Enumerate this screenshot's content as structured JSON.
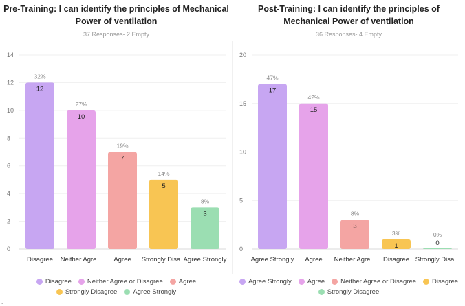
{
  "chart_data": [
    {
      "type": "bar",
      "title": "Pre-Training:  I can identify the principles of Mechanical Power of ventilation",
      "subtitle": "37 Responses- 2 Empty",
      "categories": [
        "Disagree",
        "Neither Agre...",
        "Agree",
        "Strongly Disa...",
        "Agree Strongly"
      ],
      "values": [
        12,
        10,
        7,
        5,
        3
      ],
      "percent_labels": [
        "32%",
        "27%",
        "19%",
        "14%",
        "8%"
      ],
      "colors": [
        "#c7a6f2",
        "#e6a3ea",
        "#f4a5a3",
        "#f8c553",
        "#9bdeb2"
      ],
      "ylim": [
        0,
        14
      ],
      "yticks": [
        "0",
        "2",
        "4",
        "6",
        "8",
        "10",
        "12",
        "14"
      ],
      "legend": [
        {
          "label": "Disagree",
          "color": "#c7a6f2"
        },
        {
          "label": "Neither Agree or Disagree",
          "color": "#e6a3ea"
        },
        {
          "label": "Agree",
          "color": "#f4a5a3"
        },
        {
          "label": "Strongly Disagree",
          "color": "#f8c553"
        },
        {
          "label": "Agree Strongly",
          "color": "#9bdeb2"
        }
      ]
    },
    {
      "type": "bar",
      "title": "Post-Training: I can identify the principles of Mechanical Power of ventilation",
      "subtitle": "36 Responses- 4 Empty",
      "categories": [
        "Agree Strongly",
        "Agree",
        "Neither Agre...",
        "Disagree",
        "Strongly Disa..."
      ],
      "values": [
        17,
        15,
        3,
        1,
        0
      ],
      "percent_labels": [
        "47%",
        "42%",
        "8%",
        "3%",
        "0%"
      ],
      "colors": [
        "#c7a6f2",
        "#e6a3ea",
        "#f4a5a3",
        "#f8c553",
        "#9bdeb2"
      ],
      "ylim": [
        0,
        20
      ],
      "yticks": [
        "0",
        "5",
        "10",
        "15",
        "20"
      ],
      "legend": [
        {
          "label": "Agree Strongly",
          "color": "#c7a6f2"
        },
        {
          "label": "Agree",
          "color": "#e6a3ea"
        },
        {
          "label": "Neither Agree or Disagree",
          "color": "#f4a5a3"
        },
        {
          "label": "Disagree",
          "color": "#f8c553"
        },
        {
          "label": "Strongly Disagree",
          "color": "#9bdeb2"
        }
      ]
    }
  ],
  "page": {
    "footnote": "."
  }
}
